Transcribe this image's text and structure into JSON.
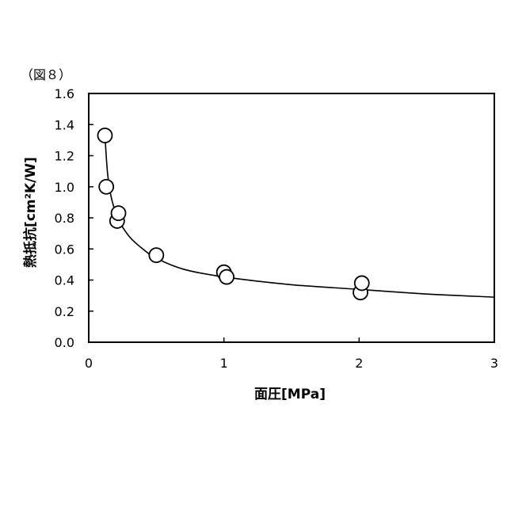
{
  "figure_label": "（図８）",
  "chart_data": {
    "type": "scatter",
    "xlabel": "面圧[MPa]",
    "ylabel": "熱抵抗[cm²K/W]",
    "xlim": [
      0,
      3
    ],
    "ylim": [
      0,
      1.6
    ],
    "x_ticks": [
      "0",
      "1",
      "2",
      "3"
    ],
    "y_ticks": [
      "0.0",
      "0.2",
      "0.4",
      "0.6",
      "0.8",
      "1.0",
      "1.2",
      "1.4",
      "1.6"
    ],
    "grid": false,
    "points": [
      {
        "x": 0.12,
        "y": 1.33
      },
      {
        "x": 0.13,
        "y": 1.0
      },
      {
        "x": 0.21,
        "y": 0.78
      },
      {
        "x": 0.22,
        "y": 0.83
      },
      {
        "x": 0.5,
        "y": 0.56
      },
      {
        "x": 1.0,
        "y": 0.45
      },
      {
        "x": 1.02,
        "y": 0.42
      },
      {
        "x": 2.01,
        "y": 0.32
      },
      {
        "x": 2.02,
        "y": 0.38
      }
    ],
    "fit_curve": [
      {
        "x": 0.12,
        "y": 1.33
      },
      {
        "x": 0.14,
        "y": 1.08
      },
      {
        "x": 0.17,
        "y": 0.92
      },
      {
        "x": 0.22,
        "y": 0.79
      },
      {
        "x": 0.3,
        "y": 0.68
      },
      {
        "x": 0.4,
        "y": 0.6
      },
      {
        "x": 0.5,
        "y": 0.54
      },
      {
        "x": 0.7,
        "y": 0.47
      },
      {
        "x": 1.0,
        "y": 0.42
      },
      {
        "x": 1.5,
        "y": 0.37
      },
      {
        "x": 2.0,
        "y": 0.34
      },
      {
        "x": 2.5,
        "y": 0.31
      },
      {
        "x": 3.0,
        "y": 0.29
      }
    ]
  }
}
